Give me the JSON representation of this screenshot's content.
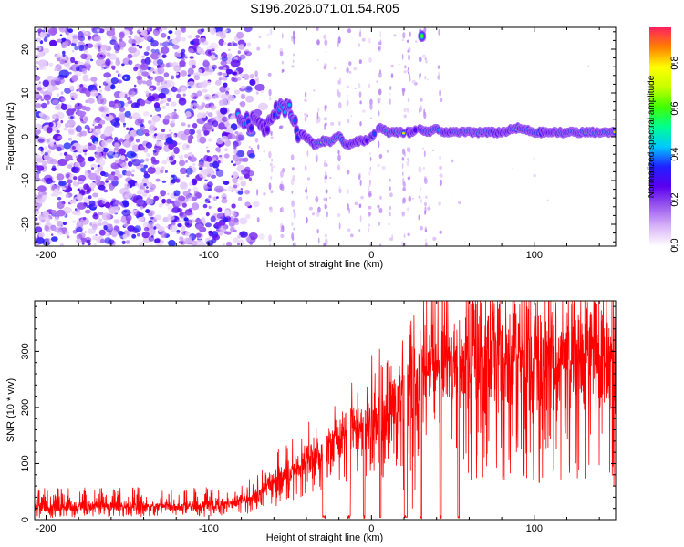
{
  "title": "S196.2026.071.01.54.R05",
  "chart_data": [
    {
      "type": "heatmap",
      "name": "spectrogram",
      "xlabel": "Height of straight line (km)",
      "ylabel": "Frequency (Hz)",
      "xlim": [
        -207,
        150
      ],
      "ylim": [
        -25,
        25
      ],
      "xticks": [
        -200,
        -100,
        0,
        100
      ],
      "yticks": [
        -20,
        -10,
        0,
        10,
        20
      ],
      "colorbar": {
        "label": "Normalized spectral amplitude",
        "range": [
          0,
          0.96
        ],
        "ticks": [
          0.0,
          0.2,
          0.4,
          0.6,
          0.8
        ],
        "tick_labels": [
          "0.0",
          "0.2",
          "0.4",
          "0.6",
          "0.8"
        ],
        "colors": [
          "#ffffff",
          "#d8b4f8",
          "#9b59f0",
          "#5a00f0",
          "#2020ff",
          "#00c8ff",
          "#00ff90",
          "#40ff00",
          "#c8ff00",
          "#ffff00",
          "#ff8000",
          "#ff2060"
        ]
      },
      "ridge": [
        [
          -80,
          4
        ],
        [
          -75,
          3
        ],
        [
          -70,
          4
        ],
        [
          -65,
          2
        ],
        [
          -60,
          6
        ],
        [
          -55,
          7
        ],
        [
          -50,
          6
        ],
        [
          -45,
          1
        ],
        [
          -40,
          0
        ],
        [
          -35,
          -2
        ],
        [
          -30,
          -1
        ],
        [
          -25,
          -1
        ],
        [
          -20,
          0
        ],
        [
          -15,
          -2
        ],
        [
          -10,
          -1
        ],
        [
          -5,
          -1
        ],
        [
          0,
          0
        ],
        [
          5,
          2
        ],
        [
          10,
          1
        ],
        [
          15,
          1
        ],
        [
          20,
          1
        ],
        [
          25,
          1
        ],
        [
          30,
          2
        ],
        [
          35,
          1
        ],
        [
          40,
          2
        ],
        [
          45,
          1
        ],
        [
          50,
          1
        ],
        [
          60,
          1
        ],
        [
          70,
          1
        ],
        [
          80,
          1
        ],
        [
          90,
          2
        ],
        [
          100,
          1
        ],
        [
          110,
          1
        ],
        [
          120,
          1
        ],
        [
          130,
          1
        ],
        [
          140,
          1
        ],
        [
          150,
          1
        ]
      ],
      "high_amplitude_regions_km": [
        [
          -35,
          -25
        ],
        [
          15,
          20
        ],
        [
          50,
          65
        ],
        [
          85,
          90
        ],
        [
          115,
          150
        ]
      ],
      "noise_extent_km": [
        -207,
        -75
      ],
      "isolated_blob": {
        "x": 31,
        "y": 23
      }
    },
    {
      "type": "line",
      "name": "snr",
      "xlabel": "Height of straight line (km)",
      "ylabel": "SNR (10 * v/v)",
      "xlim": [
        -207,
        150
      ],
      "ylim": [
        0,
        390
      ],
      "xticks": [
        -200,
        -100,
        0,
        100
      ],
      "yticks": [
        0,
        100,
        200,
        300
      ],
      "color": "#ff0000",
      "envelope": [
        [
          -207,
          20,
          12
        ],
        [
          -150,
          22,
          12
        ],
        [
          -100,
          22,
          12
        ],
        [
          -85,
          28,
          14
        ],
        [
          -70,
          40,
          20
        ],
        [
          -60,
          60,
          30
        ],
        [
          -50,
          80,
          35
        ],
        [
          -40,
          100,
          40
        ],
        [
          -30,
          115,
          45
        ],
        [
          -20,
          135,
          55
        ],
        [
          -10,
          150,
          60
        ],
        [
          0,
          160,
          70
        ],
        [
          10,
          175,
          80
        ],
        [
          20,
          200,
          110
        ],
        [
          25,
          230,
          160
        ],
        [
          30,
          255,
          80
        ],
        [
          40,
          265,
          80
        ],
        [
          50,
          255,
          100
        ],
        [
          60,
          260,
          150
        ],
        [
          80,
          265,
          150
        ],
        [
          100,
          260,
          140
        ],
        [
          120,
          265,
          140
        ],
        [
          140,
          260,
          140
        ],
        [
          150,
          255,
          140
        ]
      ],
      "spike_max": 390,
      "dropouts_km": [
        [
          -30,
          -28
        ],
        [
          -15,
          -13
        ],
        [
          -5,
          -4
        ],
        [
          5,
          6
        ],
        [
          20,
          22
        ],
        [
          30,
          31
        ],
        [
          42,
          43
        ],
        [
          53,
          54
        ]
      ]
    }
  ]
}
